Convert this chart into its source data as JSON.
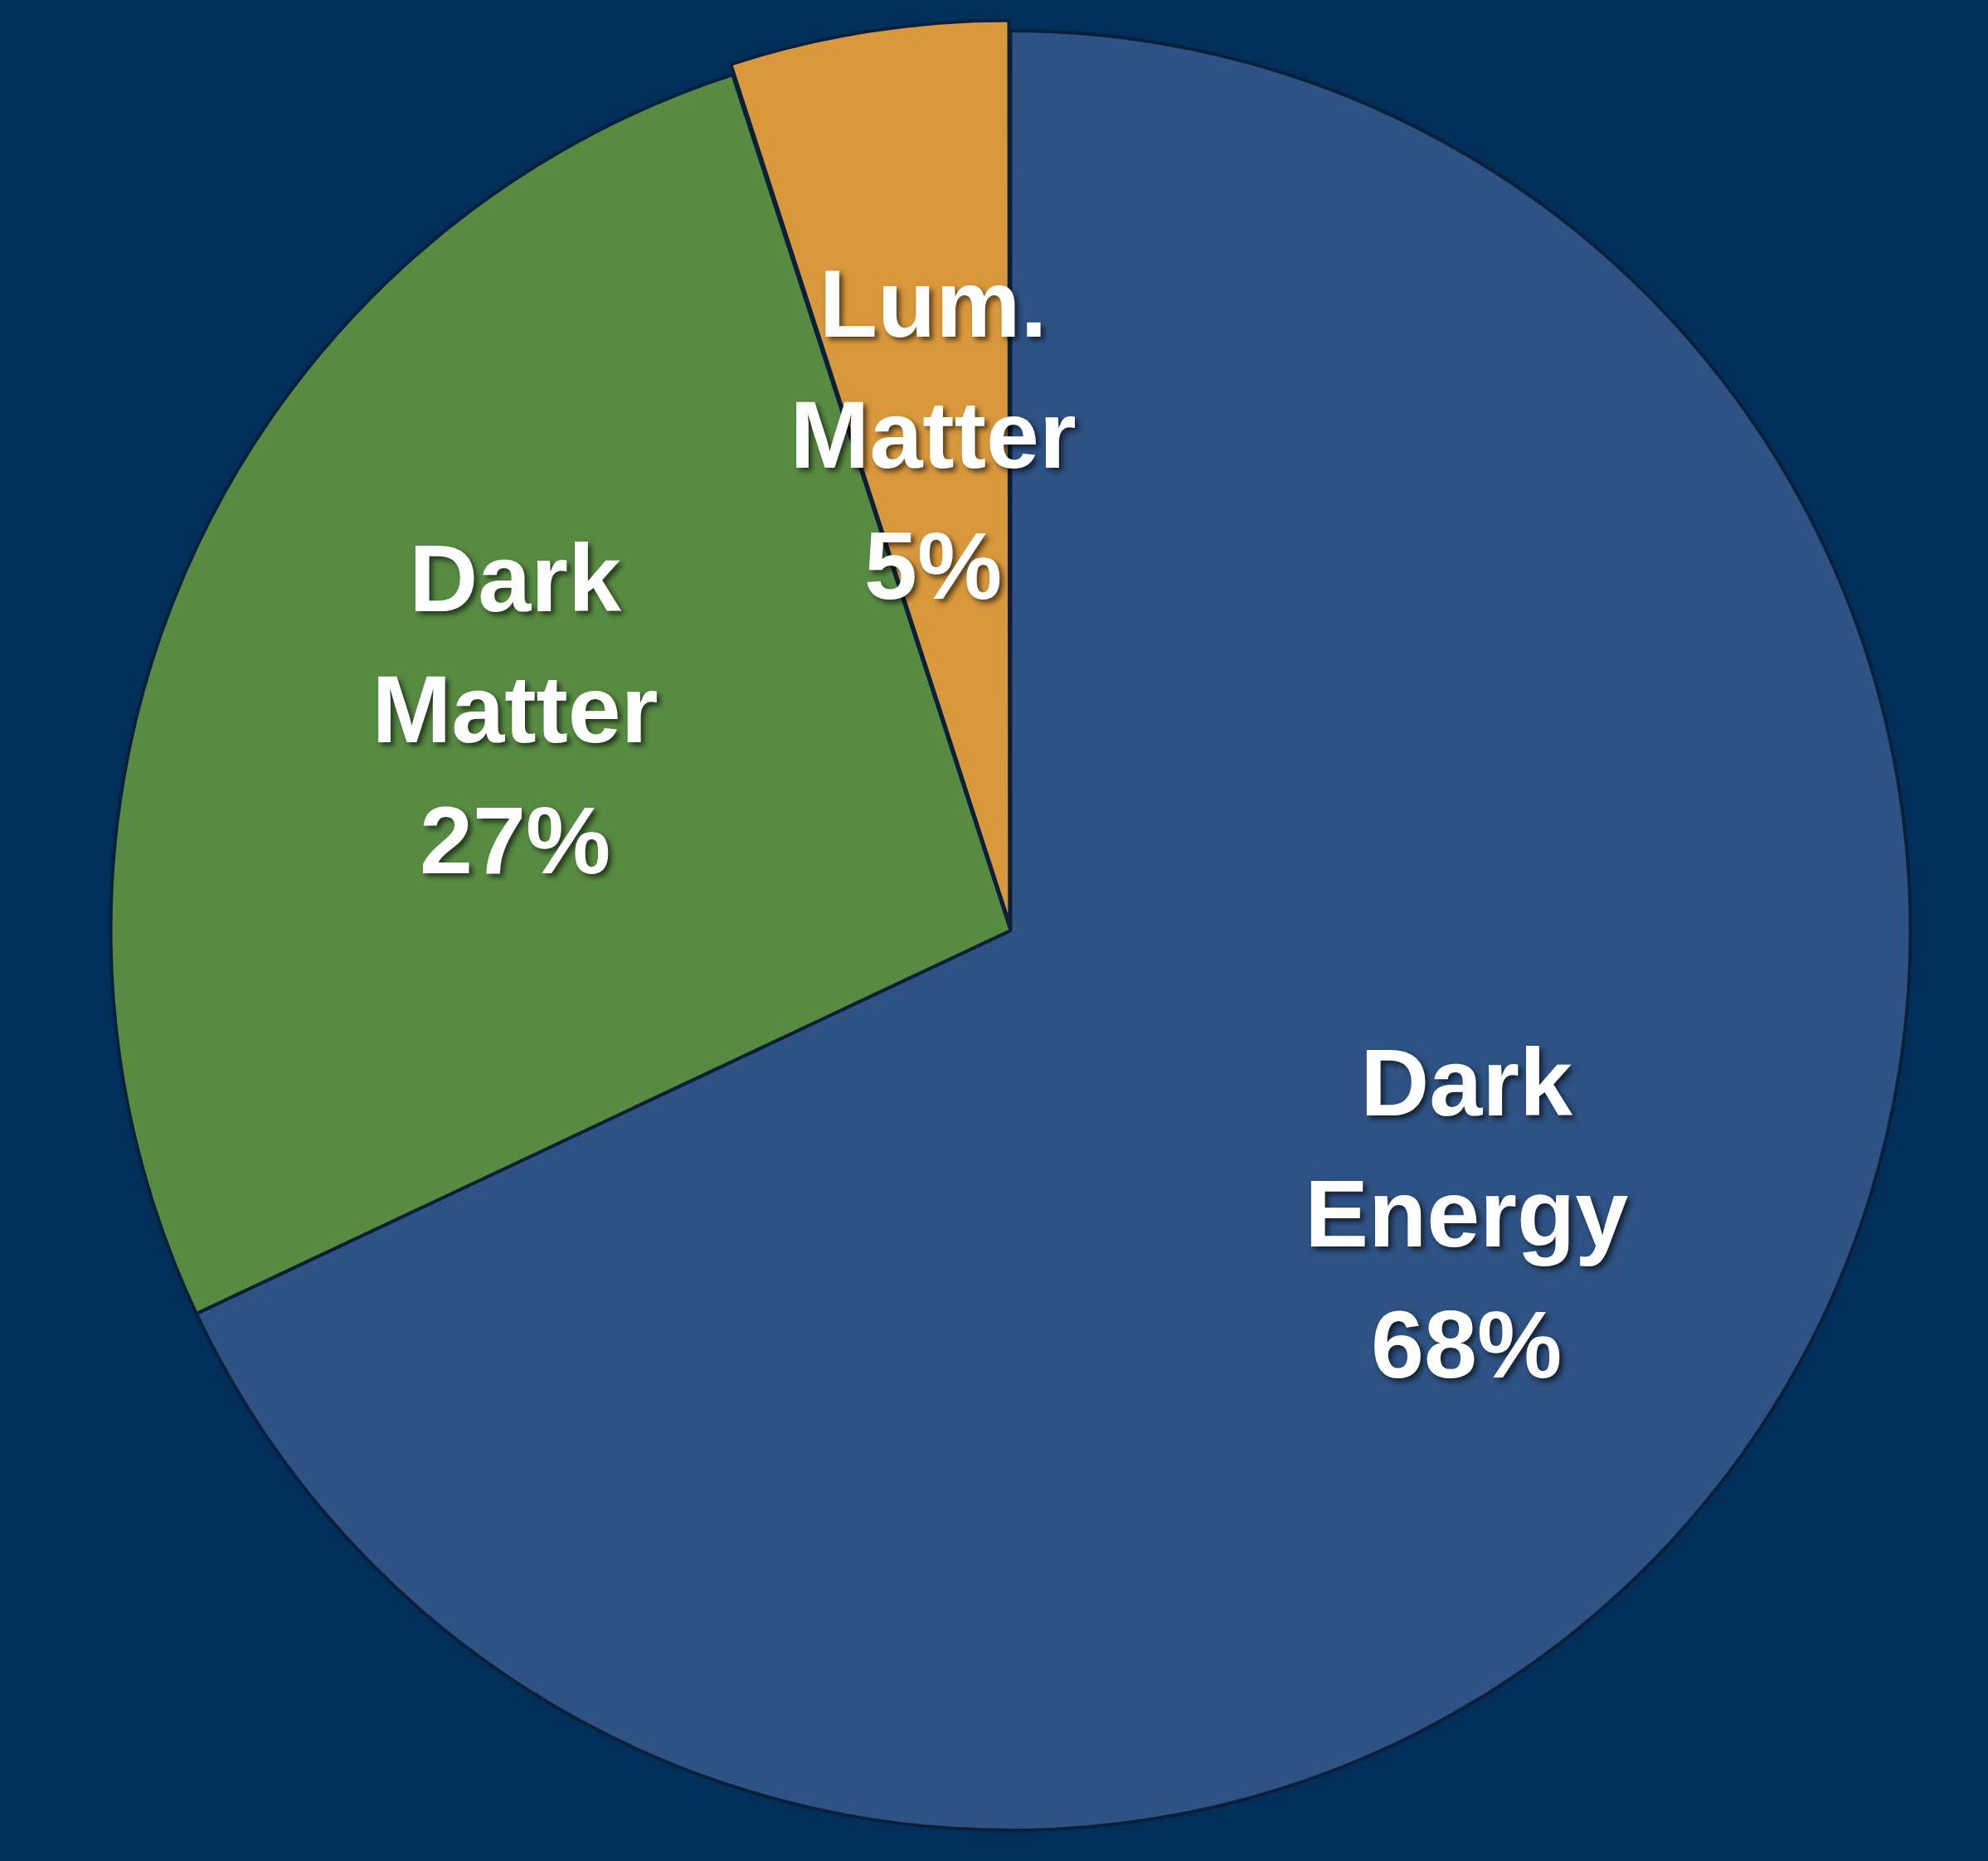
{
  "chart_data": {
    "type": "pie",
    "categories": [
      "Dark Energy",
      "Dark Matter",
      "Lum. Matter"
    ],
    "values": [
      68,
      27,
      5
    ],
    "colors": [
      "#2e5283",
      "#578b42",
      "#d9983c"
    ],
    "value_labels": [
      "68%",
      "27%",
      "5%"
    ],
    "legend": false
  }
}
